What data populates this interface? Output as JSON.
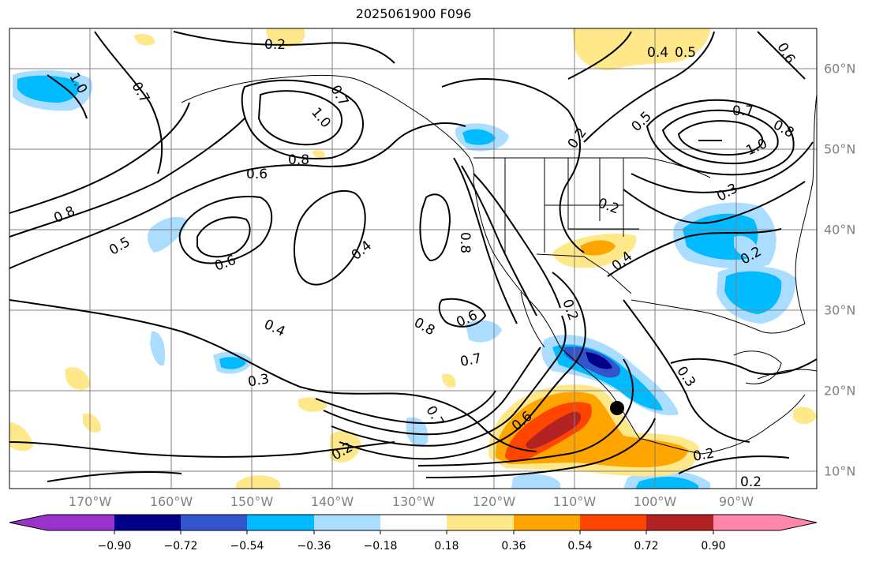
{
  "title": "2025061900 F096",
  "lon_labels": [
    "170°W",
    "160°W",
    "150°W",
    "140°W",
    "130°W",
    "120°W",
    "110°W",
    "100°W",
    "90°W"
  ],
  "lat_labels": [
    "60°N",
    "50°N",
    "40°N",
    "30°N",
    "20°N",
    "10°N"
  ],
  "colorbar": {
    "colors": [
      "#9933cc",
      "#000088",
      "#3355cc",
      "#00bbff",
      "#aaddff",
      "#ffffff",
      "#ffe88a",
      "#ffa500",
      "#ff4400",
      "#b22222",
      "#ff88aa"
    ],
    "ticks": [
      "−0.90",
      "−0.72",
      "−0.54",
      "−0.36",
      "−0.18",
      "0.18",
      "0.36",
      "0.54",
      "0.72",
      "0.90"
    ]
  },
  "contour_labels": [
    "0.2",
    "0.4",
    "0.5",
    "0.6",
    "0.7",
    "0.8",
    "1.0",
    "0.3"
  ],
  "colors": {
    "contour": "#000000",
    "grid": "#808080",
    "coast": "#000000",
    "marker": "#000000"
  }
}
